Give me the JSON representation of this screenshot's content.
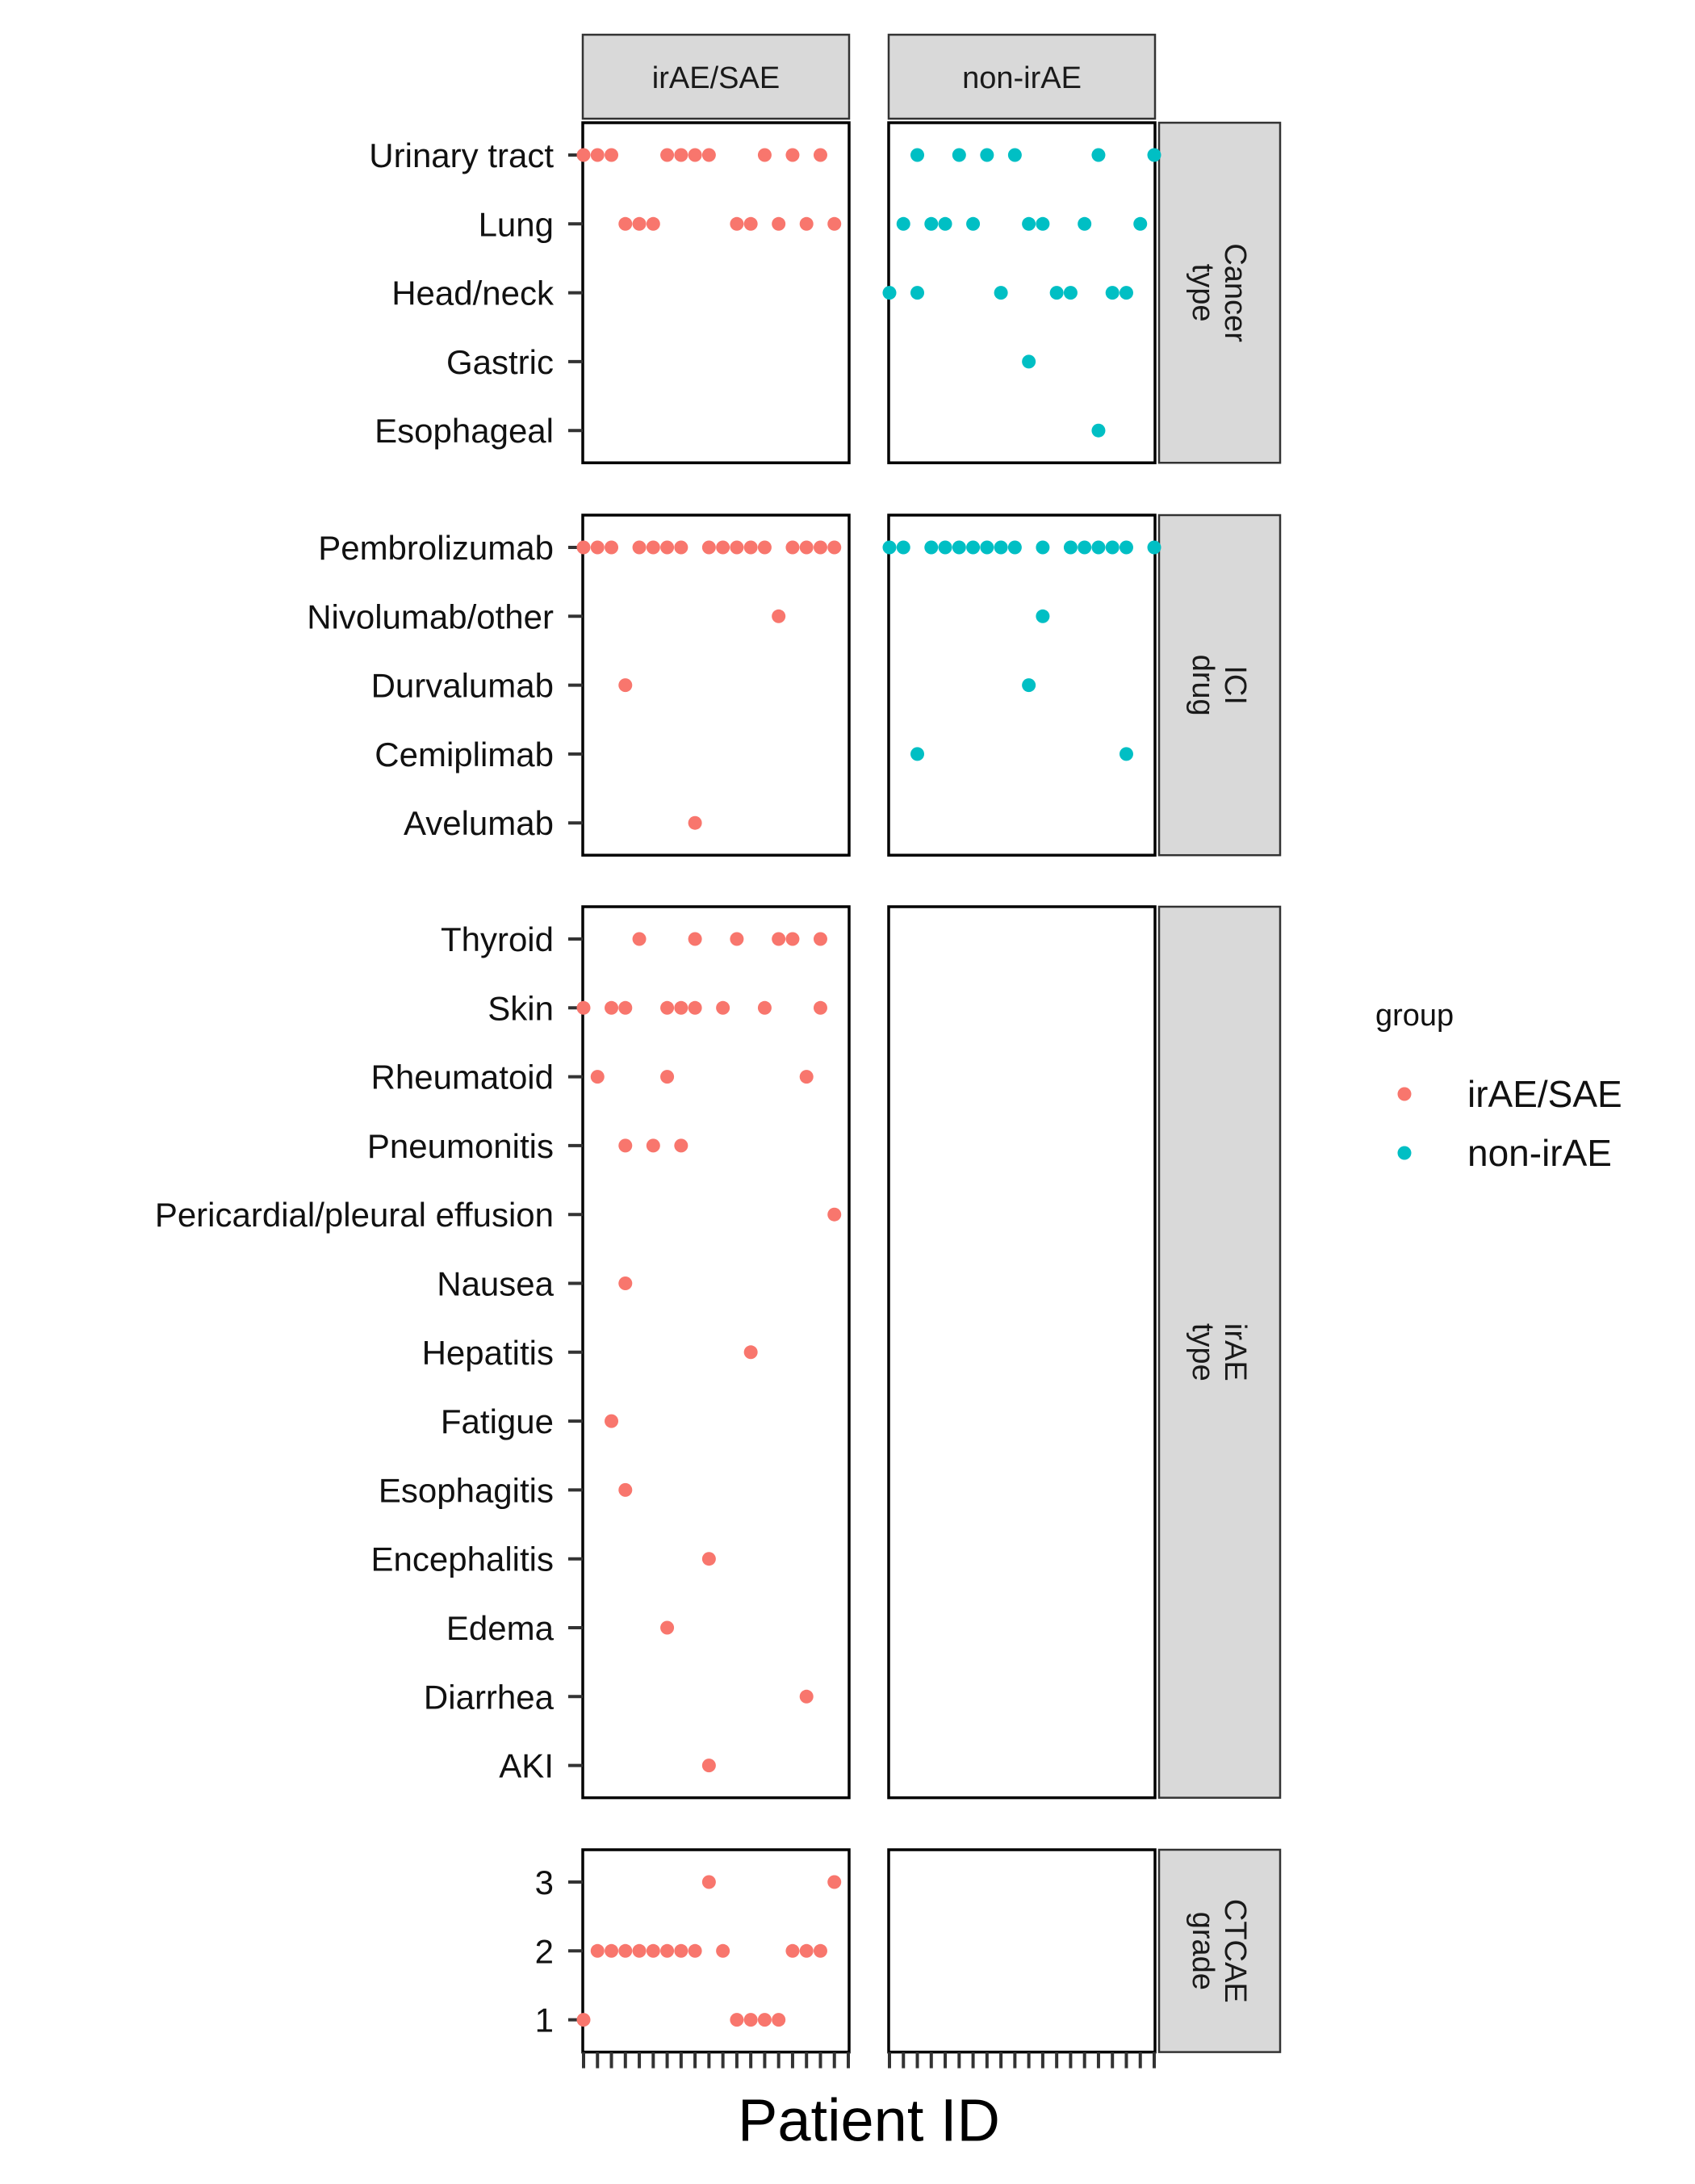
{
  "chart_data": {
    "type": "scatter",
    "title": "",
    "xlabel": "Patient ID",
    "ylabel": "",
    "columns": [
      "irAE/SAE",
      "non-irAE"
    ],
    "patients_per_column": 20,
    "legend": {
      "title": "group",
      "position": "right",
      "entries": [
        {
          "label": "irAE/SAE",
          "color": "#F8766D"
        },
        {
          "label": "non-irAE",
          "color": "#00BFC4"
        }
      ]
    },
    "facets": [
      {
        "label_lines": [
          "Cancer",
          "type"
        ],
        "categories": [
          "Urinary tract",
          "Lung",
          "Head/neck",
          "Gastric",
          "Esophageal"
        ],
        "series": [
          {
            "name": "irAE/SAE",
            "points": [
              [
                1,
                "Urinary tract"
              ],
              [
                2,
                "Urinary tract"
              ],
              [
                3,
                "Urinary tract"
              ],
              [
                7,
                "Urinary tract"
              ],
              [
                8,
                "Urinary tract"
              ],
              [
                9,
                "Urinary tract"
              ],
              [
                10,
                "Urinary tract"
              ],
              [
                14,
                "Urinary tract"
              ],
              [
                16,
                "Urinary tract"
              ],
              [
                18,
                "Urinary tract"
              ],
              [
                4,
                "Lung"
              ],
              [
                5,
                "Lung"
              ],
              [
                6,
                "Lung"
              ],
              [
                12,
                "Lung"
              ],
              [
                13,
                "Lung"
              ],
              [
                15,
                "Lung"
              ],
              [
                17,
                "Lung"
              ],
              [
                19,
                "Lung"
              ]
            ]
          },
          {
            "name": "non-irAE",
            "points": [
              [
                3,
                "Urinary tract"
              ],
              [
                6,
                "Urinary tract"
              ],
              [
                8,
                "Urinary tract"
              ],
              [
                10,
                "Urinary tract"
              ],
              [
                16,
                "Urinary tract"
              ],
              [
                20,
                "Urinary tract"
              ],
              [
                2,
                "Lung"
              ],
              [
                4,
                "Lung"
              ],
              [
                5,
                "Lung"
              ],
              [
                7,
                "Lung"
              ],
              [
                11,
                "Lung"
              ],
              [
                12,
                "Lung"
              ],
              [
                15,
                "Lung"
              ],
              [
                19,
                "Lung"
              ],
              [
                1,
                "Head/neck"
              ],
              [
                3,
                "Head/neck"
              ],
              [
                9,
                "Head/neck"
              ],
              [
                13,
                "Head/neck"
              ],
              [
                14,
                "Head/neck"
              ],
              [
                17,
                "Head/neck"
              ],
              [
                18,
                "Head/neck"
              ],
              [
                11,
                "Gastric"
              ],
              [
                16,
                "Esophageal"
              ]
            ]
          }
        ]
      },
      {
        "label_lines": [
          "ICI",
          "drug"
        ],
        "categories": [
          "Pembrolizumab",
          "Nivolumab/other",
          "Durvalumab",
          "Cemiplimab",
          "Avelumab"
        ],
        "series": [
          {
            "name": "irAE/SAE",
            "points": [
              [
                1,
                "Pembrolizumab"
              ],
              [
                2,
                "Pembrolizumab"
              ],
              [
                3,
                "Pembrolizumab"
              ],
              [
                5,
                "Pembrolizumab"
              ],
              [
                6,
                "Pembrolizumab"
              ],
              [
                7,
                "Pembrolizumab"
              ],
              [
                8,
                "Pembrolizumab"
              ],
              [
                10,
                "Pembrolizumab"
              ],
              [
                11,
                "Pembrolizumab"
              ],
              [
                12,
                "Pembrolizumab"
              ],
              [
                13,
                "Pembrolizumab"
              ],
              [
                14,
                "Pembrolizumab"
              ],
              [
                16,
                "Pembrolizumab"
              ],
              [
                17,
                "Pembrolizumab"
              ],
              [
                18,
                "Pembrolizumab"
              ],
              [
                19,
                "Pembrolizumab"
              ],
              [
                15,
                "Nivolumab/other"
              ],
              [
                4,
                "Durvalumab"
              ],
              [
                9,
                "Avelumab"
              ]
            ]
          },
          {
            "name": "non-irAE",
            "points": [
              [
                1,
                "Pembrolizumab"
              ],
              [
                2,
                "Pembrolizumab"
              ],
              [
                4,
                "Pembrolizumab"
              ],
              [
                5,
                "Pembrolizumab"
              ],
              [
                6,
                "Pembrolizumab"
              ],
              [
                7,
                "Pembrolizumab"
              ],
              [
                8,
                "Pembrolizumab"
              ],
              [
                9,
                "Pembrolizumab"
              ],
              [
                10,
                "Pembrolizumab"
              ],
              [
                12,
                "Pembrolizumab"
              ],
              [
                14,
                "Pembrolizumab"
              ],
              [
                15,
                "Pembrolizumab"
              ],
              [
                16,
                "Pembrolizumab"
              ],
              [
                17,
                "Pembrolizumab"
              ],
              [
                18,
                "Pembrolizumab"
              ],
              [
                20,
                "Pembrolizumab"
              ],
              [
                12,
                "Nivolumab/other"
              ],
              [
                11,
                "Durvalumab"
              ],
              [
                3,
                "Cemiplimab"
              ],
              [
                18,
                "Cemiplimab"
              ]
            ]
          }
        ]
      },
      {
        "label_lines": [
          "irAE",
          "type"
        ],
        "categories": [
          "Thyroid",
          "Skin",
          "Rheumatoid",
          "Pneumonitis",
          "Pericardial/pleural effusion",
          "Nausea",
          "Hepatitis",
          "Fatigue",
          "Esophagitis",
          "Encephalitis",
          "Edema",
          "Diarrhea",
          "AKI"
        ],
        "series": [
          {
            "name": "irAE/SAE",
            "points": [
              [
                5,
                "Thyroid"
              ],
              [
                9,
                "Thyroid"
              ],
              [
                12,
                "Thyroid"
              ],
              [
                15,
                "Thyroid"
              ],
              [
                16,
                "Thyroid"
              ],
              [
                18,
                "Thyroid"
              ],
              [
                1,
                "Skin"
              ],
              [
                3,
                "Skin"
              ],
              [
                4,
                "Skin"
              ],
              [
                7,
                "Skin"
              ],
              [
                8,
                "Skin"
              ],
              [
                9,
                "Skin"
              ],
              [
                11,
                "Skin"
              ],
              [
                14,
                "Skin"
              ],
              [
                18,
                "Skin"
              ],
              [
                2,
                "Rheumatoid"
              ],
              [
                7,
                "Rheumatoid"
              ],
              [
                17,
                "Rheumatoid"
              ],
              [
                4,
                "Pneumonitis"
              ],
              [
                6,
                "Pneumonitis"
              ],
              [
                8,
                "Pneumonitis"
              ],
              [
                19,
                "Pericardial/pleural effusion"
              ],
              [
                4,
                "Nausea"
              ],
              [
                13,
                "Hepatitis"
              ],
              [
                3,
                "Fatigue"
              ],
              [
                4,
                "Esophagitis"
              ],
              [
                10,
                "Encephalitis"
              ],
              [
                7,
                "Edema"
              ],
              [
                17,
                "Diarrhea"
              ],
              [
                10,
                "AKI"
              ]
            ]
          },
          {
            "name": "non-irAE",
            "points": []
          }
        ]
      },
      {
        "label_lines": [
          "CTCAE",
          "grade"
        ],
        "categories": [
          "3",
          "2",
          "1"
        ],
        "series": [
          {
            "name": "irAE/SAE",
            "points": [
              [
                10,
                "3"
              ],
              [
                19,
                "3"
              ],
              [
                2,
                "2"
              ],
              [
                3,
                "2"
              ],
              [
                4,
                "2"
              ],
              [
                5,
                "2"
              ],
              [
                6,
                "2"
              ],
              [
                7,
                "2"
              ],
              [
                8,
                "2"
              ],
              [
                9,
                "2"
              ],
              [
                11,
                "2"
              ],
              [
                16,
                "2"
              ],
              [
                17,
                "2"
              ],
              [
                18,
                "2"
              ],
              [
                1,
                "1"
              ],
              [
                12,
                "1"
              ],
              [
                13,
                "1"
              ],
              [
                14,
                "1"
              ],
              [
                15,
                "1"
              ]
            ]
          },
          {
            "name": "non-irAE",
            "points": []
          }
        ]
      }
    ]
  }
}
